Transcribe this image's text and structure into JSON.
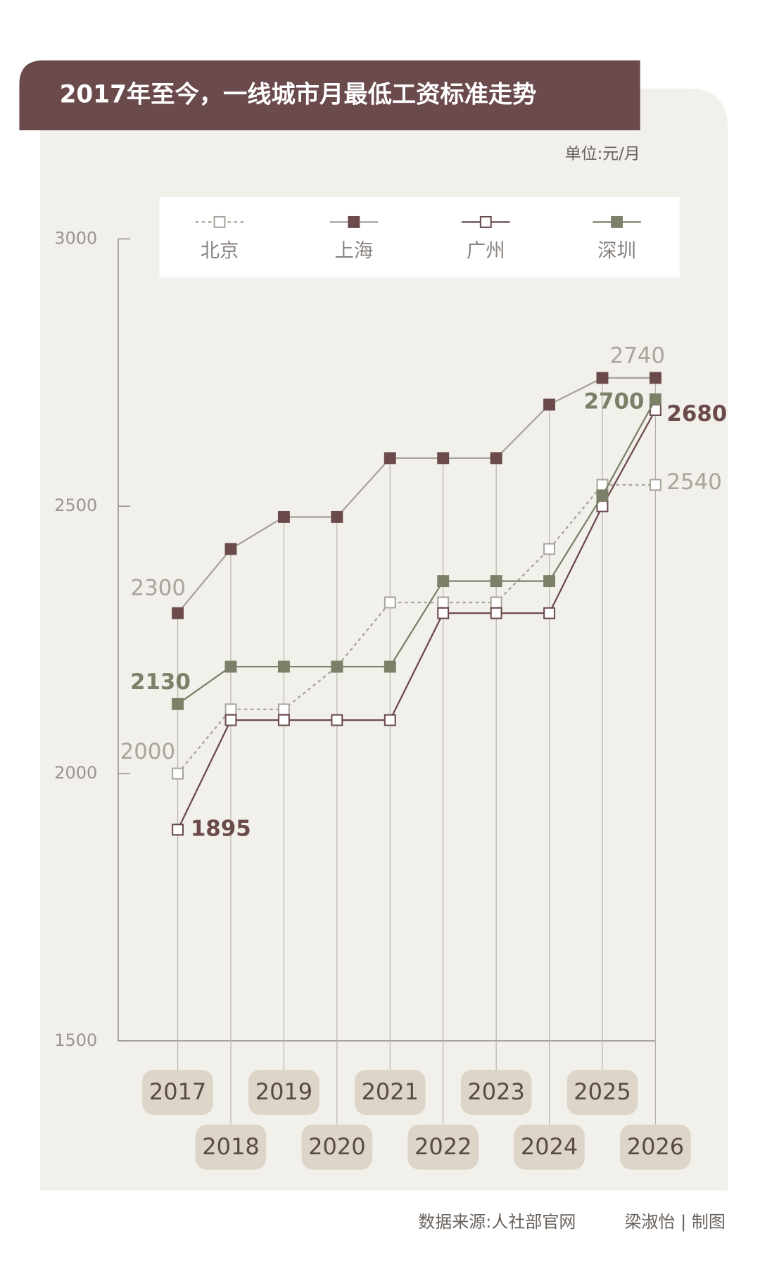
{
  "chart_data": {
    "type": "line",
    "title": "2017年至今，一线城市月最低工资标准走势",
    "unit": "单位:元/月",
    "source": "数据来源:人社部官网",
    "credit": "梁淑怡 | 制图",
    "categories": [
      "2017",
      "2018",
      "2019",
      "2020",
      "2021",
      "2022",
      "2023",
      "2024",
      "2025",
      "2026"
    ],
    "series": [
      {
        "name": "北京",
        "color": "#a8a49c",
        "line_color": "#a8a49c",
        "marker": "hollow",
        "dashed": true,
        "values": [
          2000,
          2120,
          2120,
          2200,
          2320,
          2320,
          2320,
          2420,
          2540,
          2540
        ]
      },
      {
        "name": "上海",
        "color": "#6b4a4c",
        "line_color": "#a8a49c",
        "marker": "filled",
        "dashed": false,
        "values": [
          2300,
          2420,
          2480,
          2480,
          2590,
          2590,
          2590,
          2690,
          2740,
          2740
        ]
      },
      {
        "name": "广州",
        "color": "#6b4a4c",
        "line_color": "#6b4a4c",
        "marker": "hollow",
        "dashed": false,
        "values": [
          1895,
          2100,
          2100,
          2100,
          2100,
          2300,
          2300,
          2300,
          2500,
          2680
        ]
      },
      {
        "name": "深圳",
        "color": "#7d8068",
        "line_color": "#7d8068",
        "marker": "filled",
        "dashed": false,
        "values": [
          2130,
          2200,
          2200,
          2200,
          2200,
          2360,
          2360,
          2360,
          2520,
          2700
        ]
      }
    ],
    "ylim": [
      1500,
      3000
    ],
    "yticks": [
      1500,
      2000,
      2500,
      3000
    ]
  }
}
